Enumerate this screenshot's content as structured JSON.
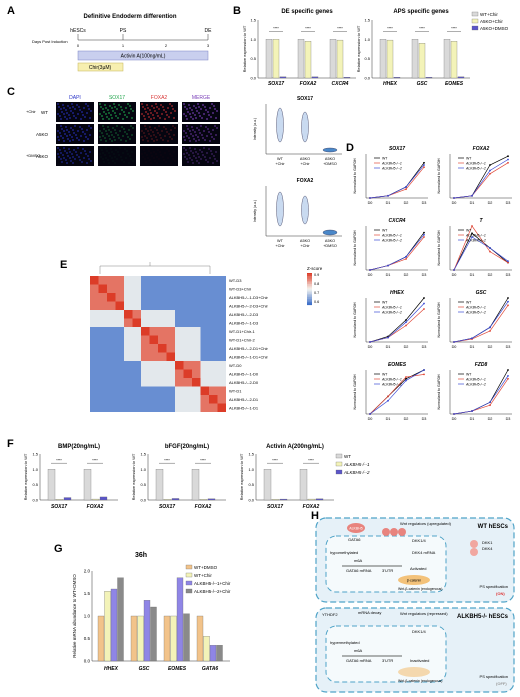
{
  "panel_labels": {
    "A": "A",
    "B": "B",
    "C": "C",
    "D": "D",
    "E": "E",
    "F": "F",
    "G": "G",
    "H": "H"
  },
  "panelA": {
    "title": "Definitive Endoderm differention",
    "start": "hESCs",
    "mid": "PS",
    "end": "DE",
    "axis_label": "Days Post Induction",
    "ticks": [
      "0",
      "1",
      "2",
      "3"
    ],
    "activin": "Activin A(100ng/mL)",
    "chir": "Chir(3µM)"
  },
  "panelB": {
    "ylabel": "Relative expression to WT",
    "colors": {
      "wt": "#d9d9d9",
      "chir": "#f3f3b8",
      "dmso": "#5a55c9"
    },
    "legend": [
      "WT+Chir",
      "A5KO+Chir",
      "A5KO+DMSO"
    ],
    "charts": [
      {
        "title": "DE specific genes",
        "categories": [
          "SOX17",
          "FOXA2",
          "CXCR4"
        ],
        "series": [
          {
            "name": "WT+Chir",
            "values": [
              1.0,
              1.0,
              1.0
            ]
          },
          {
            "name": "A5KO+Chir",
            "values": [
              1.0,
              0.95,
              0.98
            ]
          },
          {
            "name": "A5KO+DMSO",
            "values": [
              0.03,
              0.03,
              0.02
            ]
          }
        ],
        "ylim": [
          0,
          1.5
        ],
        "yticks": [
          "0.0",
          "0.5",
          "1.0",
          "1.5"
        ],
        "sig": "****"
      },
      {
        "title": "APS specific genes",
        "categories": [
          "HHEX",
          "GSC",
          "EOMES"
        ],
        "series": [
          {
            "name": "WT+Chir",
            "values": [
              1.0,
              1.0,
              1.0
            ]
          },
          {
            "name": "A5KO+Chir",
            "values": [
              0.98,
              0.9,
              0.95
            ]
          },
          {
            "name": "A5KO+DMSO",
            "values": [
              0.02,
              0.02,
              0.03
            ]
          }
        ],
        "ylim": [
          0,
          1.5
        ],
        "yticks": [
          "0.0",
          "0.5",
          "1.0",
          "1.5"
        ],
        "sig": "****"
      }
    ]
  },
  "panelC": {
    "columns": [
      "DAPI",
      "SOX17",
      "FOXA2",
      "MERGE"
    ],
    "rows": [
      "WT",
      "A5KO",
      "A5KO"
    ],
    "row_groups": [
      "+Chir",
      "+DMSO"
    ],
    "violin_titles": [
      "SOX17",
      "FOXA2"
    ],
    "violin_ylabel": "Intensity (a.u.)",
    "violin_cats": [
      "WT\n+Chir",
      "A5KO\n+Chir",
      "A5KO\n+DMSO"
    ]
  },
  "panelD": {
    "ylabel": "Normalized to GAPDH",
    "xticks": [
      "D0",
      "D1",
      "D2",
      "D3"
    ],
    "legend": [
      "WT",
      "ALKBH5-/--1",
      "ALKBH5-/--2"
    ],
    "colors": [
      "#000000",
      "#e04a3a",
      "#3a4ad6"
    ],
    "charts": [
      {
        "title": "SOX17",
        "series": [
          [
            0,
            0.01,
            0.05,
            0.16
          ],
          [
            0,
            0.01,
            0.04,
            0.14
          ],
          [
            0,
            0.01,
            0.05,
            0.15
          ]
        ],
        "ylim": [
          0,
          0.2
        ]
      },
      {
        "title": "FOXA2",
        "series": [
          [
            0,
            0.02,
            0.3,
            0.38
          ],
          [
            0,
            0.02,
            0.22,
            0.32
          ],
          [
            0,
            0.02,
            0.25,
            0.35
          ]
        ],
        "ylim": [
          0,
          0.4
        ]
      },
      {
        "title": "CXCR4",
        "series": [
          [
            0,
            0.002,
            0.006,
            0.017
          ],
          [
            0,
            0.002,
            0.005,
            0.015
          ],
          [
            0,
            0.002,
            0.006,
            0.016
          ]
        ],
        "ylim": [
          0,
          0.02
        ]
      },
      {
        "title": "T",
        "series": [
          [
            0,
            0.05,
            0.03,
            0.01
          ],
          [
            0,
            0.06,
            0.025,
            0.01
          ],
          [
            0,
            0.045,
            0.03,
            0.012
          ]
        ],
        "ylim": [
          0,
          0.06
        ]
      },
      {
        "title": "HHEX",
        "series": [
          [
            0,
            0.005,
            0.02,
            0.04
          ],
          [
            0,
            0.004,
            0.015,
            0.03
          ],
          [
            0,
            0.004,
            0.018,
            0.035
          ]
        ],
        "ylim": [
          0,
          0.04
        ]
      },
      {
        "title": "GSC",
        "series": [
          [
            0,
            0.0005,
            0.002,
            0.006
          ],
          [
            0,
            0.0004,
            0.0015,
            0.005
          ],
          [
            0,
            0.0005,
            0.002,
            0.0055
          ]
        ],
        "ylim": [
          0,
          0.006
        ]
      },
      {
        "title": "EOMES",
        "series": [
          [
            0,
            0.0002,
            0.0004,
            0.0005
          ],
          [
            0,
            0.0002,
            0.00042,
            0.00045
          ],
          [
            0,
            0.00015,
            0.00038,
            0.0005
          ]
        ],
        "ylim": [
          0,
          0.0005
        ]
      },
      {
        "title": "FZD8",
        "series": [
          [
            0,
            0.0001,
            0.0004,
            0.0015
          ],
          [
            0,
            0.0001,
            0.0003,
            0.0012
          ],
          [
            0,
            0.0001,
            0.0004,
            0.0013
          ]
        ],
        "ylim": [
          0,
          0.0015
        ]
      }
    ]
  },
  "panelE": {
    "zscore_label": "Z-score",
    "scale_ticks": [
      "0.9",
      "0.8",
      "0.7",
      "0.6"
    ],
    "row_labels": [
      "WT-D3",
      "WT-D3+Chir",
      "ALKBH5-/--1-D3+Chir",
      "ALKBH5-/--2-D3+Chir",
      "ALKBH5-/--2-D3",
      "ALKBH5-/--1-D3",
      "WT-D1+Chir-1",
      "WT-D1+Chir-2",
      "ALKBH5-/--2-D1+Chir",
      "ALKBH5-/--1-D1+Chir",
      "WT-D0",
      "ALKBH5-/--1-D0",
      "ALKBH5-/--2-D0",
      "WT-D1",
      "ALKBH5-/--2-D1",
      "ALKBH5-/--1-D1"
    ]
  },
  "panelF": {
    "ylabel": "Relative expression to WT",
    "legend": [
      "WT",
      "ALKBH5-/--1",
      "ALKBH5-/--2"
    ],
    "colors": [
      "#d9d9d9",
      "#f3f3b8",
      "#5a55c9"
    ],
    "charts": [
      {
        "title": "BMP(20ng/mL)",
        "categories": [
          "SOX17",
          "FOXA2"
        ],
        "series": [
          [
            1.0,
            1.0
          ],
          [
            0.02,
            0.03
          ],
          [
            0.08,
            0.1
          ]
        ]
      },
      {
        "title": "bFGF(20ng/mL)",
        "categories": [
          "SOX17",
          "FOXA2"
        ],
        "series": [
          [
            1.0,
            1.0
          ],
          [
            0.02,
            0.02
          ],
          [
            0.05,
            0.04
          ]
        ]
      },
      {
        "title": "Activin A(200ng/mL)",
        "categories": [
          "SOX17",
          "FOXA2"
        ],
        "series": [
          [
            1.0,
            1.0
          ],
          [
            0.02,
            0.03
          ],
          [
            0.03,
            0.04
          ]
        ]
      }
    ],
    "ylim": [
      0,
      1.5
    ],
    "yticks": [
      "0.0",
      "0.5",
      "1.0",
      "1.5"
    ],
    "sig": "****"
  },
  "panelG": {
    "title": "36h",
    "ylabel": "Relative mRNA abundance to WT+DMSO",
    "categories": [
      "HHEX",
      "GSC",
      "EOMES",
      "GATA6"
    ],
    "legend": [
      "WT+DMSO",
      "WT+Chir",
      "ALKBH5-/--1+Chir",
      "ALKBH5-/--2+Chir"
    ],
    "colors": [
      "#f2c38a",
      "#f3f3b8",
      "#8f85e6",
      "#8a8a8a"
    ],
    "series": [
      [
        1.0,
        1.0,
        1.0,
        1.0
      ],
      [
        1.55,
        1.0,
        1.0,
        0.55
      ],
      [
        1.6,
        1.35,
        1.85,
        0.35
      ],
      [
        1.85,
        1.2,
        1.05,
        0.35
      ]
    ],
    "ylim": [
      0,
      2.0
    ],
    "yticks": [
      "0.0",
      "0.5",
      "1.0",
      "1.5",
      "2.0"
    ]
  },
  "panelH": {
    "top_title": "WT hESCs",
    "bottom_title": "ALKBH5-/- hESCs",
    "top_labels": [
      "Wnt regulators (upregulated)",
      "DKK1/4",
      "DKK4 mRNA",
      "hypomethylated",
      "GATA6 mRNA",
      "3'UTR",
      "m6A",
      "Activated",
      "Wnt-β-catenin (endogenous)",
      "DKK1",
      "DKK4",
      "PS specification",
      "(ON)",
      "GATA6"
    ],
    "bottom_labels": [
      "YTHDF2",
      "mRNA decay",
      "Wnt regulators (repressed)",
      "DKK1/4",
      "hypermethylated",
      "GATA6 mRNA",
      "3'UTR",
      "m6A",
      "Inactivated",
      "Wnt-β-catenin (endogenous)",
      "PS specification",
      "(OFF)"
    ]
  }
}
